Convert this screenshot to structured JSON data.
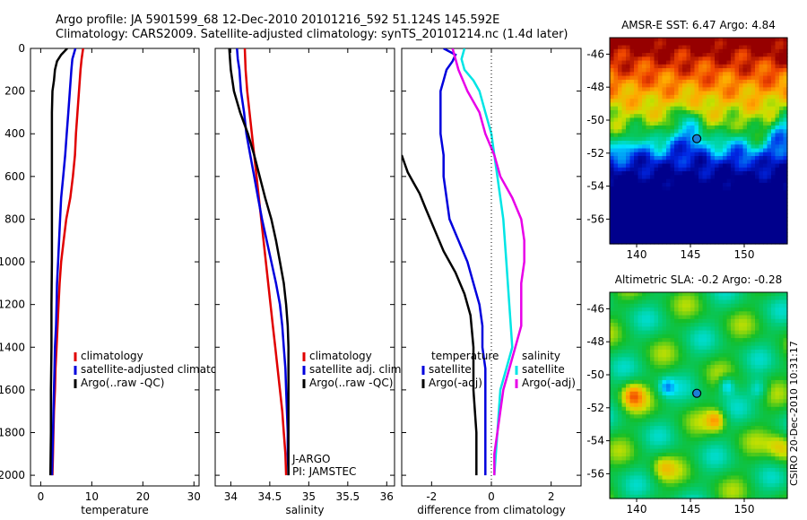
{
  "header": {
    "line1": "Argo profile: JA 5901599_68 12-Dec-2010 20101216_592 51.124S 145.592E",
    "line2": "Climatology: CARS2009. Satellite-adjusted climatology: synTS_20101214.nc (1.4d later)"
  },
  "credit": "CSIRO 20-Dec-2010 10:31:17",
  "colors": {
    "red": "#e00000",
    "blue": "#0000dd",
    "black": "#000000",
    "cyan": "#00e5e5",
    "magenta": "#e800e8"
  },
  "chart_data": [
    {
      "id": "temperature",
      "type": "line",
      "xlabel": "temperature",
      "xlim": [
        -2,
        31
      ],
      "ylim": [
        0,
        2050
      ],
      "y_reversed": true,
      "xticks": [
        0,
        10,
        20,
        30
      ],
      "yticks": [
        0,
        200,
        400,
        600,
        800,
        1000,
        1200,
        1400,
        1600,
        1800,
        2000
      ],
      "legend": {
        "labels": [
          "climatology",
          "satellite-adjusted climatology",
          "Argo(..raw -QC)"
        ],
        "colors": [
          "#e00000",
          "#0000dd",
          "#000000"
        ]
      },
      "series": [
        {
          "name": "climatology",
          "color": "#e00000",
          "points": [
            [
              8.3,
              0
            ],
            [
              8.0,
              50
            ],
            [
              7.8,
              100
            ],
            [
              7.5,
              200
            ],
            [
              7.2,
              300
            ],
            [
              6.9,
              400
            ],
            [
              6.7,
              500
            ],
            [
              6.3,
              600
            ],
            [
              5.8,
              700
            ],
            [
              5.0,
              800
            ],
            [
              4.5,
              900
            ],
            [
              4.0,
              1000
            ],
            [
              3.7,
              1100
            ],
            [
              3.5,
              1200
            ],
            [
              3.3,
              1300
            ],
            [
              3.1,
              1400
            ],
            [
              2.9,
              1500
            ],
            [
              2.8,
              1600
            ],
            [
              2.6,
              1700
            ],
            [
              2.5,
              1800
            ],
            [
              2.4,
              1900
            ],
            [
              2.3,
              2000
            ]
          ]
        },
        {
          "name": "satellite-adjusted climatology",
          "color": "#0000dd",
          "points": [
            [
              6.8,
              0
            ],
            [
              6.2,
              50
            ],
            [
              6.0,
              100
            ],
            [
              5.7,
              200
            ],
            [
              5.4,
              300
            ],
            [
              5.1,
              400
            ],
            [
              4.8,
              500
            ],
            [
              4.4,
              600
            ],
            [
              4.0,
              700
            ],
            [
              3.8,
              800
            ],
            [
              3.6,
              900
            ],
            [
              3.4,
              1000
            ],
            [
              3.2,
              1100
            ],
            [
              3.1,
              1200
            ],
            [
              3.0,
              1300
            ],
            [
              2.8,
              1400
            ],
            [
              2.7,
              1500
            ],
            [
              2.6,
              1600
            ],
            [
              2.5,
              1700
            ],
            [
              2.4,
              1800
            ],
            [
              2.3,
              1900
            ],
            [
              2.2,
              2000
            ]
          ]
        },
        {
          "name": "Argo(..raw -QC)",
          "color": "#000000",
          "points": [
            [
              5.2,
              0
            ],
            [
              4.0,
              30
            ],
            [
              3.2,
              60
            ],
            [
              2.8,
              100
            ],
            [
              2.6,
              150
            ],
            [
              2.3,
              200
            ],
            [
              2.2,
              300
            ],
            [
              2.2,
              400
            ],
            [
              2.2,
              500
            ],
            [
              2.2,
              700
            ],
            [
              2.2,
              1000
            ],
            [
              2.1,
              1200
            ],
            [
              2.1,
              1400
            ],
            [
              2.0,
              1600
            ],
            [
              2.0,
              1800
            ],
            [
              1.9,
              2000
            ]
          ]
        }
      ]
    },
    {
      "id": "salinity",
      "type": "line",
      "xlabel": "salinity",
      "xlim": [
        33.8,
        36.1
      ],
      "ylim": [
        0,
        2050
      ],
      "y_reversed": true,
      "xticks": [
        34,
        34.5,
        35,
        35.5,
        36
      ],
      "legend": {
        "labels": [
          "climatology",
          "satellite adj. clim.",
          "Argo(..raw -QC)"
        ],
        "colors": [
          "#e00000",
          "#0000dd",
          "#000000"
        ]
      },
      "annotations": [
        "J-ARGO",
        "PI: JAMSTEC"
      ],
      "series": [
        {
          "name": "climatology",
          "color": "#e00000",
          "points": [
            [
              34.18,
              0
            ],
            [
              34.19,
              100
            ],
            [
              34.21,
              200
            ],
            [
              34.24,
              300
            ],
            [
              34.27,
              400
            ],
            [
              34.3,
              500
            ],
            [
              34.33,
              600
            ],
            [
              34.36,
              700
            ],
            [
              34.39,
              800
            ],
            [
              34.42,
              900
            ],
            [
              34.45,
              1000
            ],
            [
              34.48,
              1100
            ],
            [
              34.51,
              1200
            ],
            [
              34.54,
              1300
            ],
            [
              34.57,
              1400
            ],
            [
              34.6,
              1500
            ],
            [
              34.63,
              1600
            ],
            [
              34.66,
              1700
            ],
            [
              34.68,
              1800
            ],
            [
              34.7,
              1900
            ],
            [
              34.71,
              2000
            ]
          ]
        },
        {
          "name": "satellite adj. clim.",
          "color": "#0000dd",
          "points": [
            [
              34.08,
              0
            ],
            [
              34.09,
              50
            ],
            [
              34.11,
              100
            ],
            [
              34.13,
              200
            ],
            [
              34.17,
              300
            ],
            [
              34.2,
              400
            ],
            [
              34.25,
              500
            ],
            [
              34.3,
              600
            ],
            [
              34.35,
              700
            ],
            [
              34.4,
              800
            ],
            [
              34.46,
              900
            ],
            [
              34.52,
              1000
            ],
            [
              34.58,
              1100
            ],
            [
              34.63,
              1200
            ],
            [
              34.66,
              1300
            ],
            [
              34.68,
              1400
            ],
            [
              34.7,
              1500
            ],
            [
              34.71,
              1600
            ],
            [
              34.72,
              1700
            ],
            [
              34.73,
              1800
            ],
            [
              34.73,
              1900
            ],
            [
              34.74,
              2000
            ]
          ]
        },
        {
          "name": "Argo(..raw -QC)",
          "color": "#000000",
          "points": [
            [
              33.98,
              0
            ],
            [
              33.99,
              50
            ],
            [
              34.0,
              100
            ],
            [
              34.04,
              200
            ],
            [
              34.12,
              300
            ],
            [
              34.22,
              400
            ],
            [
              34.3,
              500
            ],
            [
              34.37,
              600
            ],
            [
              34.44,
              700
            ],
            [
              34.52,
              800
            ],
            [
              34.58,
              900
            ],
            [
              34.63,
              1000
            ],
            [
              34.68,
              1100
            ],
            [
              34.71,
              1200
            ],
            [
              34.73,
              1300
            ],
            [
              34.74,
              1400
            ],
            [
              34.74,
              1600
            ],
            [
              34.74,
              1800
            ],
            [
              34.74,
              2000
            ]
          ]
        }
      ]
    },
    {
      "id": "difference",
      "type": "line",
      "xlabel": "difference from climatology",
      "xlim": [
        -3,
        3
      ],
      "ylim": [
        0,
        2050
      ],
      "y_reversed": true,
      "xticks": [
        -2,
        0,
        2
      ],
      "legend_left": {
        "labels": [
          "temperature",
          "satellite",
          "Argo(-adj)"
        ],
        "colors": [
          null,
          "#0000dd",
          "#000000"
        ]
      },
      "legend_right": {
        "labels": [
          "salinity",
          "satellite",
          "Argo(-adj)"
        ],
        "colors": [
          null,
          "#00e5e5",
          "#e800e8"
        ]
      },
      "series": [
        {
          "name": "temperature satellite",
          "color": "#0000dd",
          "points": [
            [
              -1.6,
              0
            ],
            [
              -1.2,
              30
            ],
            [
              -1.3,
              60
            ],
            [
              -1.5,
              100
            ],
            [
              -1.6,
              150
            ],
            [
              -1.7,
              200
            ],
            [
              -1.7,
              300
            ],
            [
              -1.7,
              400
            ],
            [
              -1.6,
              500
            ],
            [
              -1.6,
              600
            ],
            [
              -1.5,
              700
            ],
            [
              -1.4,
              800
            ],
            [
              -1.1,
              900
            ],
            [
              -0.8,
              1000
            ],
            [
              -0.6,
              1100
            ],
            [
              -0.4,
              1200
            ],
            [
              -0.3,
              1300
            ],
            [
              -0.3,
              1400
            ],
            [
              -0.2,
              1500
            ],
            [
              -0.2,
              1600
            ],
            [
              -0.2,
              1700
            ],
            [
              -0.2,
              1800
            ],
            [
              -0.2,
              1900
            ],
            [
              -0.2,
              2000
            ]
          ]
        },
        {
          "name": "temperature Argo(-adj)",
          "color": "#000000",
          "points": [
            [
              -3.0,
              500
            ],
            [
              -2.9,
              540
            ],
            [
              -2.8,
              580
            ],
            [
              -2.6,
              630
            ],
            [
              -2.4,
              680
            ],
            [
              -2.2,
              750
            ],
            [
              -1.9,
              850
            ],
            [
              -1.6,
              950
            ],
            [
              -1.2,
              1050
            ],
            [
              -0.9,
              1150
            ],
            [
              -0.7,
              1250
            ],
            [
              -0.6,
              1400
            ],
            [
              -0.6,
              1600
            ],
            [
              -0.5,
              1800
            ],
            [
              -0.5,
              2000
            ]
          ]
        },
        {
          "name": "salinity satellite",
          "color": "#00e5e5",
          "points": [
            [
              -0.9,
              0
            ],
            [
              -1.0,
              50
            ],
            [
              -0.9,
              100
            ],
            [
              -0.6,
              150
            ],
            [
              -0.4,
              200
            ],
            [
              -0.2,
              300
            ],
            [
              0.0,
              400
            ],
            [
              0.1,
              500
            ],
            [
              0.2,
              600
            ],
            [
              0.4,
              800
            ],
            [
              0.5,
              1000
            ],
            [
              0.6,
              1200
            ],
            [
              0.7,
              1400
            ],
            [
              0.5,
              1500
            ],
            [
              0.3,
              1600
            ],
            [
              0.2,
              1800
            ],
            [
              0.1,
              2000
            ]
          ]
        },
        {
          "name": "salinity Argo(-adj)",
          "color": "#e800e8",
          "points": [
            [
              -1.3,
              0
            ],
            [
              -1.1,
              100
            ],
            [
              -0.8,
              200
            ],
            [
              -0.4,
              300
            ],
            [
              -0.2,
              400
            ],
            [
              0.1,
              500
            ],
            [
              0.3,
              600
            ],
            [
              0.7,
              700
            ],
            [
              1.0,
              800
            ],
            [
              1.1,
              900
            ],
            [
              1.1,
              1000
            ],
            [
              1.0,
              1100
            ],
            [
              1.0,
              1200
            ],
            [
              1.0,
              1300
            ],
            [
              0.8,
              1400
            ],
            [
              0.6,
              1500
            ],
            [
              0.4,
              1600
            ],
            [
              0.3,
              1700
            ],
            [
              0.2,
              1800
            ],
            [
              0.1,
              1900
            ],
            [
              0.1,
              2000
            ]
          ]
        }
      ]
    },
    {
      "id": "sst-map",
      "type": "heatmap",
      "title": "AMSR-E SST: 6.47 Argo: 4.84",
      "xlim": [
        137.5,
        154
      ],
      "ylim": [
        -57.5,
        -45
      ],
      "xticks": [
        140,
        145,
        150
      ],
      "yticks": [
        -46,
        -48,
        -50,
        -52,
        -54,
        -56
      ],
      "marker": {
        "lon": 145.592,
        "lat": -51.124
      }
    },
    {
      "id": "sla-map",
      "type": "heatmap",
      "title": "Altimetric SLA: -0.2 Argo: -0.28",
      "xlim": [
        137.5,
        154
      ],
      "ylim": [
        -57.5,
        -45
      ],
      "xticks": [
        140,
        145,
        150
      ],
      "yticks": [
        -46,
        -48,
        -50,
        -52,
        -54,
        -56
      ],
      "marker": {
        "lon": 145.592,
        "lat": -51.124
      }
    }
  ]
}
